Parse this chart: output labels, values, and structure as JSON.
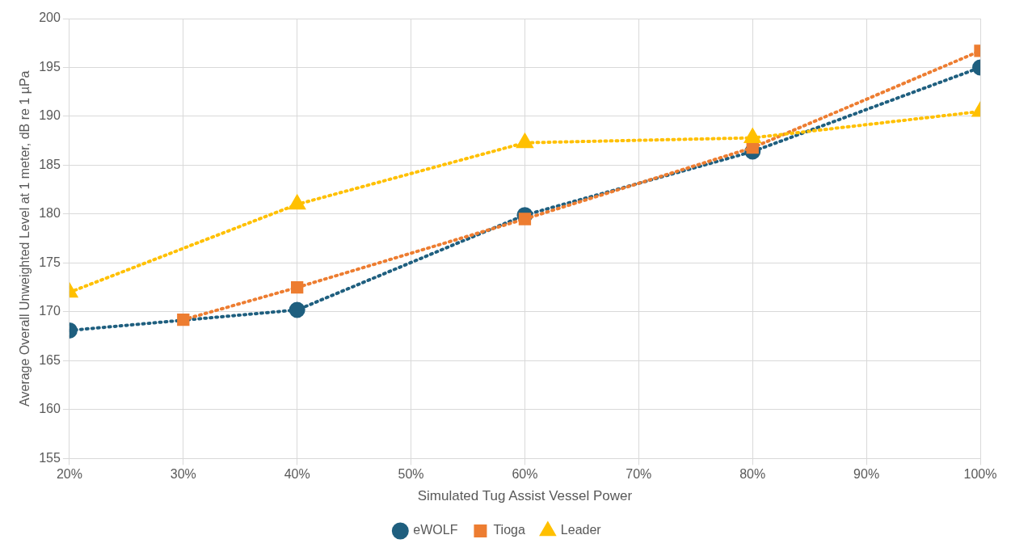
{
  "chart_data": {
    "type": "line",
    "xlabel": "Simulated Tug Assist Vessel Power",
    "ylabel": "Average Overall Unweighted Level at 1 meter, dB re 1 µPa",
    "xlim": [
      20,
      100
    ],
    "xticks": [
      {
        "value": 20,
        "label": "20%"
      },
      {
        "value": 30,
        "label": "30%"
      },
      {
        "value": 40,
        "label": "40%"
      },
      {
        "value": 50,
        "label": "50%"
      },
      {
        "value": 60,
        "label": "60%"
      },
      {
        "value": 70,
        "label": "70%"
      },
      {
        "value": 80,
        "label": "80%"
      },
      {
        "value": 90,
        "label": "90%"
      },
      {
        "value": 100,
        "label": "100%"
      }
    ],
    "ylim": [
      155,
      200
    ],
    "yticks": [
      155,
      160,
      165,
      170,
      175,
      180,
      185,
      190,
      195,
      200
    ],
    "grid": true,
    "legend": "bottom",
    "line_style": "dotted",
    "series": [
      {
        "name": "eWOLF",
        "color": "#1f5f7f",
        "marker": "circle",
        "x": [
          20,
          40,
          60,
          80,
          100
        ],
        "values": [
          168.1,
          170.2,
          179.9,
          186.4,
          195.0
        ]
      },
      {
        "name": "Tioga",
        "color": "#ed7d31",
        "marker": "square",
        "x": [
          30,
          40,
          60,
          80,
          100
        ],
        "values": [
          169.2,
          172.5,
          179.5,
          186.8,
          196.7
        ]
      },
      {
        "name": "Leader",
        "color": "#ffc000",
        "marker": "triangle",
        "x": [
          20,
          40,
          60,
          80,
          100
        ],
        "values": [
          172.0,
          181.0,
          187.3,
          187.8,
          190.5
        ]
      }
    ]
  }
}
